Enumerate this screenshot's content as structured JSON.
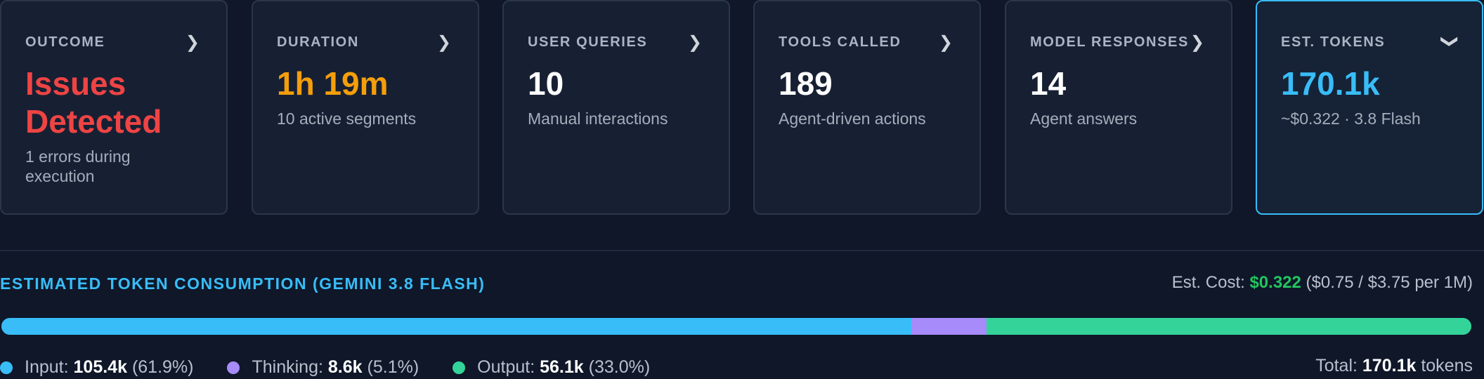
{
  "cards": [
    {
      "label": "OUTCOME",
      "value": "Issues Detected",
      "subtext": "1 errors during execution",
      "value_color": "#ef4444",
      "icon": "chevron-right-icon"
    },
    {
      "label": "DURATION",
      "value": "1h 19m",
      "subtext": "10 active segments",
      "value_color": "#f59e0b",
      "icon": "chevron-right-icon"
    },
    {
      "label": "USER QUERIES",
      "value": "10",
      "subtext": "Manual interactions",
      "value_color": "#ffffff",
      "icon": "chevron-right-icon"
    },
    {
      "label": "TOOLS CALLED",
      "value": "189",
      "subtext": "Agent-driven actions",
      "value_color": "#ffffff",
      "icon": "chevron-right-icon"
    },
    {
      "label": "MODEL RESPONSES",
      "value": "14",
      "subtext": "Agent answers",
      "value_color": "#ffffff",
      "icon": "chevron-right-icon"
    },
    {
      "label": "EST. TOKENS",
      "value": "170.1k",
      "subtext": "~$0.322 · 3.8 Flash",
      "value_color": "#38bdf8",
      "icon": "chevron-down-icon",
      "active": true
    }
  ],
  "token_section": {
    "title": "ESTIMATED TOKEN CONSUMPTION (GEMINI 3.8 FLASH)",
    "cost_label": "Est. Cost:",
    "cost_value": "$0.322",
    "cost_rates": "($0.75 / $3.75 per 1M)",
    "bar": [
      {
        "name": "input",
        "percent": 61.9,
        "color": "#38bdf8"
      },
      {
        "name": "thinking",
        "percent": 5.1,
        "color": "#a78bfa"
      },
      {
        "name": "output",
        "percent": 33.0,
        "color": "#34d399"
      }
    ],
    "legend": [
      {
        "label": "Input:",
        "value": "105.4k",
        "percent": "(61.9%)"
      },
      {
        "label": "Thinking:",
        "value": "8.6k",
        "percent": "(5.1%)"
      },
      {
        "label": "Output:",
        "value": "56.1k",
        "percent": "(33.0%)"
      }
    ],
    "total_label": "Total:",
    "total_value": "170.1k",
    "total_unit": "tokens"
  }
}
